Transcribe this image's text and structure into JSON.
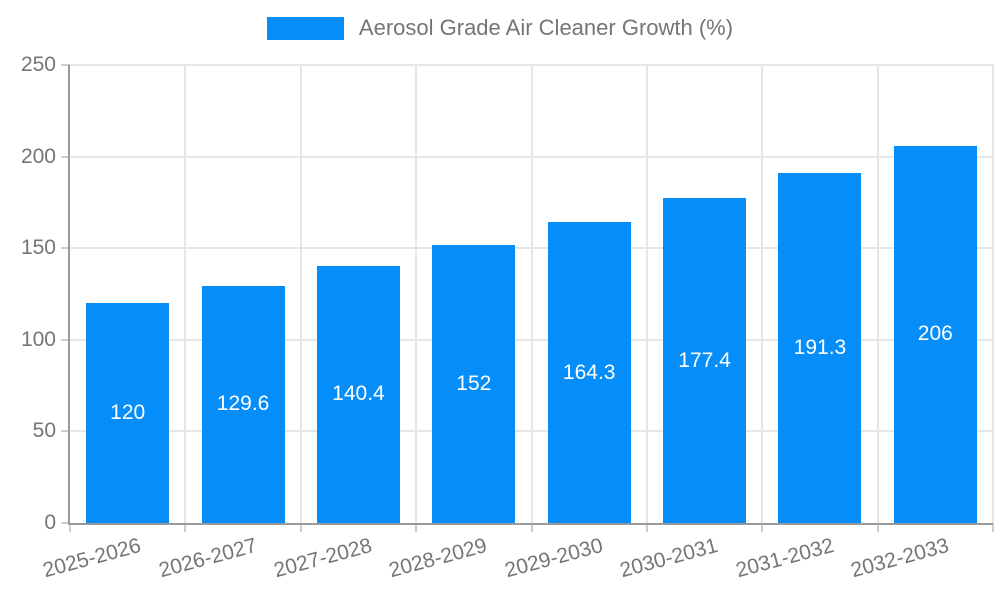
{
  "chart_data": {
    "type": "bar",
    "title": "",
    "legend": "Aerosol Grade Air Cleaner Growth (%)",
    "legend_position": "top-center",
    "categories": [
      "2025-2026",
      "2026-2027",
      "2027-2028",
      "2028-2029",
      "2029-2030",
      "2030-2031",
      "2031-2032",
      "2032-2033"
    ],
    "series": [
      {
        "name": "Aerosol Grade Air Cleaner Growth (%)",
        "values": [
          120,
          129.6,
          140.4,
          152,
          164.3,
          177.4,
          191.3,
          206
        ]
      }
    ],
    "value_labels": [
      "120",
      "129.6",
      "140.4",
      "152",
      "164.3",
      "177.4",
      "191.3",
      "206"
    ],
    "xlabel": "",
    "ylabel": "",
    "ylim": [
      0,
      250
    ],
    "yticks": [
      0,
      50,
      100,
      150,
      200,
      250
    ],
    "grid": true,
    "colors": {
      "bar": "#058efa",
      "grid": "#e6e6e6",
      "axis_line": "#9a9a9a",
      "tick": "#cccccc",
      "axis_text": "#757575",
      "value_label": "#ffffff",
      "background": "#ffffff"
    }
  }
}
